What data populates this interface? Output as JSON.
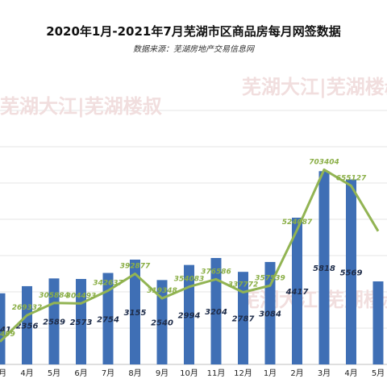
{
  "chart_title": "2020年1月-2021年7月芜湖市区商品房每月网签数据",
  "chart_subtitle": "数据来源：芜湖房地产交易信息网",
  "watermark": "芜湖大江|芜湖楼叔",
  "colors": {
    "bar": "#3F6FB5",
    "line": "#92B453",
    "line_label": "#8BAF47",
    "bar_label": "#1F2D4A"
  },
  "chart_data": {
    "type": "bar",
    "title": "2020年1月-2021年7月芜湖市区商品房每月网签数据",
    "subtitle": "数据来源：芜湖房地产交易信息网",
    "categories": [
      "3月",
      "4月",
      "5月",
      "6月",
      "7月",
      "8月",
      "9月",
      "10月",
      "11月",
      "12月",
      "1月",
      "2月",
      "3月",
      "4月",
      "5月"
    ],
    "series": [
      {
        "type": "bar",
        "values": [
          2141,
          2356,
          2589,
          2573,
          2754,
          3155,
          2540,
          2994,
          3204,
          2787,
          3084,
          4417,
          5818,
          5569,
          2500
        ]
      },
      {
        "type": "line",
        "values": [
          190499,
          269332,
          305884,
          304493,
          342637,
          392877,
          319348,
          354083,
          376586,
          337772,
          357539,
          524087,
          703404,
          655127,
          520000
        ]
      }
    ],
    "xlabel": "",
    "ylabel": "",
    "grid": true
  }
}
